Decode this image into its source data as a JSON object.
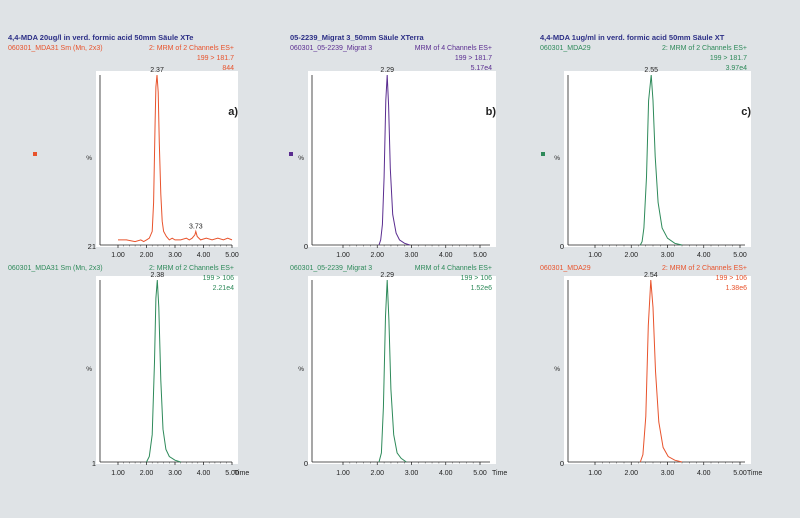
{
  "colors": {
    "background": "#dfe3e6",
    "plot_bg": "#ffffff",
    "title_blue": "#2c2f86",
    "red": "#e8532c",
    "purple": "#5a2d90",
    "green": "#2e8a5a",
    "axis": "#222222"
  },
  "chart_data": [
    {
      "type": "line",
      "title": "4,4-MDA 20ug/l in verd. formic acid 50mm Säule XTe",
      "info_left": "060301_MDA31 Sm (Mn, 2x3)",
      "info_right": "2: MRM of 2 Channels ES+",
      "transition": "199 > 181.7",
      "intensity": "844",
      "panel_label": "a)",
      "ylabel": "%",
      "y_bottom_label": "21",
      "xlim": [
        0.5,
        5.0
      ],
      "xticks": [
        "1.00",
        "2.00",
        "3.00",
        "4.00",
        "5.00"
      ],
      "peak_labels": [
        {
          "x": 2.37,
          "text": "2.37"
        },
        {
          "x": 3.73,
          "text": "3.73"
        }
      ],
      "series": [
        {
          "color": "red",
          "x": [
            1.0,
            1.3,
            1.6,
            1.8,
            1.9,
            2.0,
            2.1,
            2.2,
            2.25,
            2.3,
            2.33,
            2.37,
            2.41,
            2.45,
            2.5,
            2.55,
            2.6,
            2.7,
            2.8,
            2.9,
            3.0,
            3.2,
            3.4,
            3.5,
            3.6,
            3.7,
            3.73,
            3.78,
            3.9,
            4.1,
            4.3,
            4.5,
            4.7,
            4.85,
            5.0
          ],
          "y": [
            3,
            3,
            2,
            3,
            2,
            3,
            4,
            8,
            25,
            72,
            93,
            100,
            90,
            60,
            30,
            14,
            8,
            5,
            3,
            4,
            3,
            3,
            4,
            3,
            4,
            6,
            8,
            5,
            3,
            4,
            3,
            4,
            3,
            4,
            3
          ]
        }
      ]
    },
    {
      "type": "line",
      "title": "05-2239_Migrat 3_50mm Säule XTerra",
      "info_left": "060301_05-2239_Migrat 3",
      "info_right": "MRM of 4 Channels ES+",
      "transition": "199 > 181.7",
      "intensity": "5.17e4",
      "panel_label": "b)",
      "ylabel": "%",
      "y_bottom_label": "0",
      "xlim": [
        0.5,
        5.0
      ],
      "xticks": [
        "1.00",
        "2.00",
        "3.00",
        "4.00",
        "5.00"
      ],
      "peak_labels": [
        {
          "x": 2.29,
          "text": "2.29"
        }
      ],
      "series": [
        {
          "color": "purple",
          "x": [
            2.05,
            2.1,
            2.15,
            2.2,
            2.25,
            2.29,
            2.33,
            2.38,
            2.45,
            2.55,
            2.65,
            2.8,
            2.95
          ],
          "y": [
            0,
            3,
            12,
            40,
            85,
            100,
            82,
            45,
            18,
            7,
            3,
            1,
            0
          ]
        }
      ]
    },
    {
      "type": "line",
      "title": "4,4-MDA 1ug/ml in verd. formic acid 50mm Säule XT",
      "info_left": "060301_MDA29",
      "info_right": "2: MRM of 2 Channels ES+",
      "transition": "199 > 181.7",
      "intensity": "3.97e4",
      "panel_label": "c)",
      "ylabel": "%",
      "y_bottom_label": "0",
      "xlim": [
        0.5,
        5.0
      ],
      "xticks": [
        "1.00",
        "2.00",
        "3.00",
        "4.00",
        "5.00"
      ],
      "peak_labels": [
        {
          "x": 2.55,
          "text": "2.55"
        }
      ],
      "series": [
        {
          "color": "green",
          "x": [
            2.25,
            2.3,
            2.35,
            2.42,
            2.48,
            2.55,
            2.6,
            2.66,
            2.74,
            2.85,
            3.0,
            3.2,
            3.4
          ],
          "y": [
            0,
            2,
            10,
            40,
            85,
            100,
            85,
            52,
            25,
            10,
            4,
            1,
            0
          ]
        }
      ]
    },
    {
      "type": "line",
      "title": "",
      "info_left": "060301_MDA31 Sm (Mn, 2x3)",
      "info_right": "2: MRM of 2 Channels ES+",
      "transition": "199 > 106",
      "intensity": "2.21e4",
      "panel_label": "",
      "ylabel": "%",
      "y_bottom_label": "1",
      "xlim": [
        0.5,
        5.0
      ],
      "xticks": [
        "1.00",
        "2.00",
        "3.00",
        "4.00",
        "5.00"
      ],
      "x_axis_label": "Time",
      "peak_labels": [
        {
          "x": 2.38,
          "text": "2.38"
        }
      ],
      "series": [
        {
          "color": "green",
          "x": [
            2.0,
            2.1,
            2.2,
            2.28,
            2.33,
            2.38,
            2.43,
            2.5,
            2.58,
            2.68,
            2.8,
            3.0,
            3.2
          ],
          "y": [
            0,
            3,
            15,
            55,
            90,
            100,
            85,
            45,
            18,
            7,
            3,
            1,
            0
          ]
        }
      ]
    },
    {
      "type": "line",
      "title": "",
      "info_left": "060301_05-2239_Migrat 3",
      "info_right": "MRM of 4 Channels ES+",
      "transition": "199 > 106",
      "intensity": "1.52e6",
      "panel_label": "",
      "ylabel": "%",
      "y_bottom_label": "0",
      "xlim": [
        0.5,
        5.0
      ],
      "xticks": [
        "1.00",
        "2.00",
        "3.00",
        "4.00",
        "5.00"
      ],
      "x_axis_label": "Time",
      "peak_labels": [
        {
          "x": 2.29,
          "text": "2.29"
        }
      ],
      "series": [
        {
          "color": "green",
          "x": [
            2.05,
            2.12,
            2.18,
            2.24,
            2.29,
            2.34,
            2.4,
            2.48,
            2.58,
            2.7,
            2.85
          ],
          "y": [
            0,
            5,
            30,
            80,
            100,
            78,
            40,
            15,
            5,
            2,
            0
          ]
        }
      ]
    },
    {
      "type": "line",
      "title": "",
      "info_left": "060301_MDA29",
      "info_right": "2: MRM of 2 Channels ES+",
      "transition": "199 > 106",
      "intensity": "1.38e6",
      "panel_label": "",
      "ylabel": "%",
      "y_bottom_label": "0",
      "xlim": [
        0.5,
        5.0
      ],
      "xticks": [
        "1.00",
        "2.00",
        "3.00",
        "4.00",
        "5.00"
      ],
      "x_axis_label": "Time",
      "peak_labels": [
        {
          "x": 2.54,
          "text": "2.54"
        }
      ],
      "series": [
        {
          "color": "red",
          "x": [
            2.25,
            2.32,
            2.4,
            2.47,
            2.54,
            2.6,
            2.67,
            2.76,
            2.88,
            3.02,
            3.2,
            3.4
          ],
          "y": [
            0,
            4,
            25,
            75,
            100,
            85,
            50,
            22,
            8,
            3,
            1,
            0
          ]
        }
      ]
    }
  ]
}
